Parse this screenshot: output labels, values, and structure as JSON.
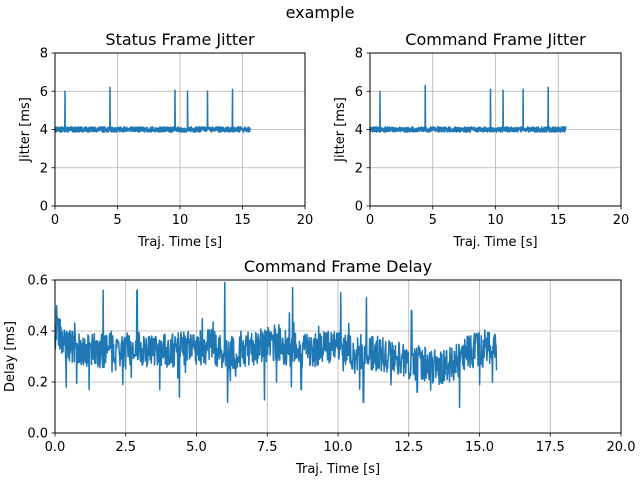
{
  "suptitle": "example",
  "series_color": "#1f77b4",
  "chart_data": [
    {
      "id": "status-jitter",
      "type": "line",
      "title": "Status Frame Jitter",
      "xlabel": "Traj. Time [s]",
      "ylabel": "Jitter [ms]",
      "xlim": [
        0,
        20
      ],
      "ylim": [
        0,
        8
      ],
      "xticks": [
        0,
        5,
        10,
        15,
        20
      ],
      "yticks": [
        0,
        2,
        4,
        6,
        8
      ],
      "xtick_labels": [
        "0",
        "5",
        "10",
        "15",
        "20"
      ],
      "ytick_labels": [
        "0",
        "2",
        "4",
        "6",
        "8"
      ],
      "grid": true,
      "baseline": 4.0,
      "x_end": 15.6,
      "spikes": [
        [
          0.8,
          6.0
        ],
        [
          4.4,
          6.2
        ],
        [
          9.6,
          6.05
        ],
        [
          10.6,
          6.0
        ],
        [
          12.2,
          6.0
        ],
        [
          14.2,
          6.1
        ]
      ]
    },
    {
      "id": "command-jitter",
      "type": "line",
      "title": "Command Frame Jitter",
      "xlabel": "Traj. Time [s]",
      "ylabel": "Jitter [ms]",
      "xlim": [
        0,
        20
      ],
      "ylim": [
        0,
        8
      ],
      "xticks": [
        0,
        5,
        10,
        15,
        20
      ],
      "yticks": [
        0,
        2,
        4,
        6,
        8
      ],
      "xtick_labels": [
        "0",
        "5",
        "10",
        "15",
        "20"
      ],
      "ytick_labels": [
        "0",
        "2",
        "4",
        "6",
        "8"
      ],
      "grid": true,
      "baseline": 4.0,
      "x_end": 15.6,
      "spikes": [
        [
          0.8,
          6.0
        ],
        [
          4.4,
          6.3
        ],
        [
          9.6,
          6.1
        ],
        [
          10.6,
          6.05
        ],
        [
          12.2,
          6.1
        ],
        [
          14.2,
          6.2
        ]
      ]
    },
    {
      "id": "command-delay",
      "type": "line",
      "title": "Command Frame Delay",
      "xlabel": "Traj. Time [s]",
      "ylabel": "Delay [ms]",
      "xlim": [
        0,
        20
      ],
      "ylim": [
        0,
        0.6
      ],
      "xticks": [
        0,
        2.5,
        5,
        7.5,
        10,
        12.5,
        15,
        17.5,
        20
      ],
      "yticks": [
        0,
        0.2,
        0.4,
        0.6
      ],
      "xtick_labels": [
        "0.0",
        "2.5",
        "5.0",
        "7.5",
        "10.0",
        "12.5",
        "15.0",
        "17.5",
        "20.0"
      ],
      "ytick_labels": [
        "0.0",
        "0.2",
        "0.4",
        "0.6"
      ],
      "grid": true,
      "x": [
        0.0,
        0.5,
        1.0,
        1.5,
        2.0,
        2.5,
        3.0,
        3.5,
        4.0,
        4.5,
        5.0,
        5.5,
        6.0,
        6.5,
        7.0,
        7.5,
        8.0,
        8.5,
        9.0,
        9.5,
        10.0,
        10.5,
        11.0,
        11.5,
        12.0,
        12.5,
        13.0,
        13.5,
        14.0,
        14.5,
        15.0,
        15.6
      ],
      "y": [
        0.4,
        0.35,
        0.32,
        0.32,
        0.33,
        0.32,
        0.34,
        0.31,
        0.32,
        0.33,
        0.33,
        0.34,
        0.3,
        0.33,
        0.33,
        0.35,
        0.34,
        0.32,
        0.32,
        0.34,
        0.33,
        0.31,
        0.32,
        0.31,
        0.29,
        0.28,
        0.27,
        0.26,
        0.27,
        0.31,
        0.33,
        0.35
      ],
      "peaks": [
        [
          1.7,
          0.56
        ],
        [
          2.9,
          0.56
        ],
        [
          6.0,
          0.59
        ],
        [
          8.4,
          0.57
        ],
        [
          10.1,
          0.55
        ],
        [
          11.0,
          0.53
        ],
        [
          12.6,
          0.48
        ]
      ],
      "dips": [
        [
          0.4,
          0.18
        ],
        [
          1.2,
          0.17
        ],
        [
          2.4,
          0.19
        ],
        [
          3.7,
          0.17
        ],
        [
          4.4,
          0.14
        ],
        [
          6.1,
          0.12
        ],
        [
          7.4,
          0.13
        ],
        [
          8.7,
          0.17
        ],
        [
          10.9,
          0.12
        ],
        [
          12.8,
          0.16
        ],
        [
          14.3,
          0.1
        ],
        [
          15.0,
          0.19
        ]
      ]
    }
  ]
}
